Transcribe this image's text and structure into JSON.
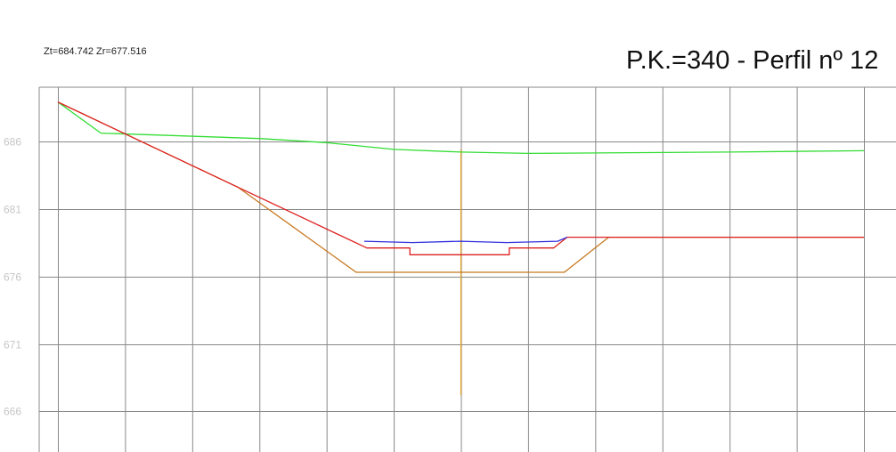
{
  "header": {
    "z_readout": "Zt=684.742 Zr=677.516",
    "title": "P.K.=340 - Perfil nº 12"
  },
  "colors": {
    "grid": "#888888",
    "tick_text": "#c6c6c6",
    "terrain": "#33dd33",
    "subgrade": "#c87820",
    "centerline": "#e0a020",
    "road_red": "#dd2020",
    "road_blue": "#3030dd"
  },
  "chart_data": {
    "type": "line",
    "x_unit": "m (offset from axis)",
    "xlim": [
      -30,
      30
    ],
    "ylim": [
      663,
      690
    ],
    "yticks": [
      686,
      681,
      676,
      671,
      666
    ],
    "x_gridlines": [
      -30,
      -25,
      -20,
      -15,
      -10,
      -5,
      0,
      5,
      10,
      15,
      20,
      25,
      30
    ],
    "grid": true,
    "centerline": {
      "x": 0,
      "y_range": [
        667.2,
        685.4
      ]
    },
    "series": [
      {
        "key": "terrain",
        "color": "#33dd33",
        "points": [
          [
            -30,
            688.9
          ],
          [
            -26.8,
            686.6
          ],
          [
            -15,
            686.2
          ],
          [
            -10,
            685.9
          ],
          [
            -5,
            685.4
          ],
          [
            0,
            685.2
          ],
          [
            5,
            685.1
          ],
          [
            20,
            685.2
          ],
          [
            30,
            685.3
          ]
        ]
      },
      {
        "key": "subgrade",
        "color": "#c87820",
        "points": [
          [
            -30,
            688.9
          ],
          [
            -16.6,
            682.6
          ],
          [
            -7.8,
            676.3
          ],
          [
            7.7,
            676.3
          ],
          [
            11,
            678.9
          ],
          [
            30,
            678.9
          ]
        ]
      },
      {
        "key": "road_red",
        "color": "#dd2020",
        "points": [
          [
            -30,
            688.9
          ],
          [
            -16.6,
            682.6
          ],
          [
            -7.0,
            678.1
          ],
          [
            -3.8,
            678.1
          ],
          [
            -3.8,
            677.6
          ],
          [
            3.6,
            677.6
          ],
          [
            3.6,
            678.1
          ],
          [
            6.9,
            678.1
          ],
          [
            7.9,
            678.9
          ],
          [
            30,
            678.9
          ]
        ]
      },
      {
        "key": "road_blue",
        "color": "#3030dd",
        "points": [
          [
            -7.2,
            678.6
          ],
          [
            -3.6,
            678.5
          ],
          [
            0,
            678.6
          ],
          [
            3.4,
            678.5
          ],
          [
            7.2,
            678.6
          ],
          [
            7.9,
            678.9
          ]
        ]
      }
    ]
  }
}
